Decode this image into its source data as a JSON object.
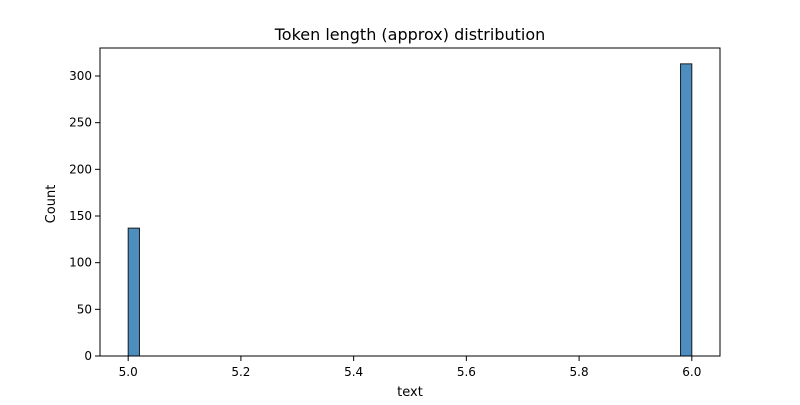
{
  "chart_data": {
    "type": "bar",
    "title": "Token length (approx) distribution",
    "xlabel": "text",
    "ylabel": "Count",
    "xlim": [
      4.95,
      6.05
    ],
    "ylim": [
      0,
      330
    ],
    "x_ticks": [
      5.0,
      5.2,
      5.4,
      5.6,
      5.8,
      6.0
    ],
    "x_tick_labels": [
      "5.0",
      "5.2",
      "5.4",
      "5.6",
      "5.8",
      "6.0"
    ],
    "y_ticks": [
      0,
      50,
      100,
      150,
      200,
      250,
      300
    ],
    "y_tick_labels": [
      "0",
      "50",
      "100",
      "150",
      "200",
      "250",
      "300"
    ],
    "bin_width": 0.02,
    "bars": [
      {
        "x_start": 5.0,
        "x_end": 5.02,
        "value": 137
      },
      {
        "x_start": 5.98,
        "x_end": 6.0,
        "value": 313
      }
    ],
    "grid": false,
    "colors": {
      "bar_fill": "#4c8ebf",
      "bar_edge": "#1a1a1a",
      "axes": "#000000"
    }
  }
}
